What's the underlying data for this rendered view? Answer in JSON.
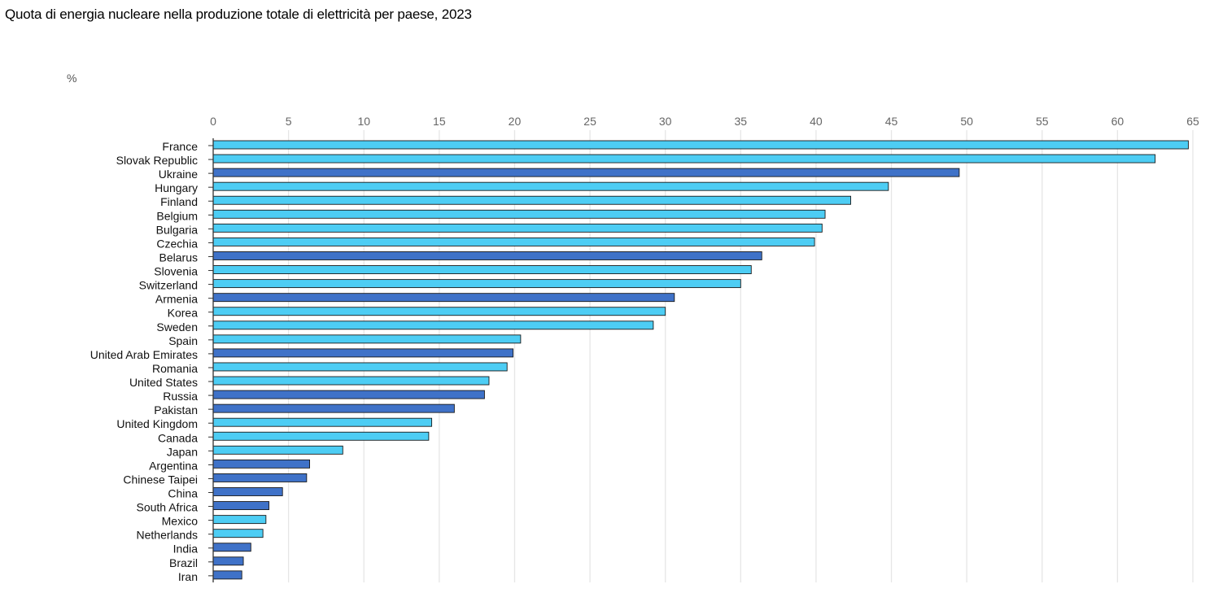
{
  "chart_data": {
    "type": "bar",
    "orientation": "horizontal",
    "title": "Quota di energia nucleare nella produzione totale di elettricità per paese, 2023",
    "unit_label": "%",
    "xlim": [
      0,
      65
    ],
    "xticks": [
      0,
      5,
      10,
      15,
      20,
      25,
      30,
      35,
      40,
      45,
      50,
      55,
      60,
      65
    ],
    "grid": true,
    "colors": {
      "light": "#4dcdf4",
      "dark": "#3f72c8",
      "border": "#1a1a1a",
      "grid": "#e6e6e6",
      "axis": "#333333"
    },
    "categories": [
      "France",
      "Slovak Republic",
      "Ukraine",
      "Hungary",
      "Finland",
      "Belgium",
      "Bulgaria",
      "Czechia",
      "Belarus",
      "Slovenia",
      "Switzerland",
      "Armenia",
      "Korea",
      "Sweden",
      "Spain",
      "United Arab Emirates",
      "Romania",
      "United States",
      "Russia",
      "Pakistan",
      "United Kingdom",
      "Canada",
      "Japan",
      "Argentina",
      "Chinese Taipei",
      "China",
      "South Africa",
      "Mexico",
      "Netherlands",
      "India",
      "Brazil",
      "Iran"
    ],
    "values": [
      64.7,
      62.5,
      49.5,
      44.8,
      42.3,
      40.6,
      40.4,
      39.9,
      36.4,
      35.7,
      35.0,
      30.6,
      30.0,
      29.2,
      20.4,
      19.9,
      19.5,
      18.3,
      18.0,
      16.0,
      14.5,
      14.3,
      8.6,
      6.4,
      6.2,
      4.6,
      3.7,
      3.5,
      3.3,
      2.5,
      2.0,
      1.9
    ],
    "series_group": [
      "light",
      "light",
      "dark",
      "light",
      "light",
      "light",
      "light",
      "light",
      "dark",
      "light",
      "light",
      "dark",
      "light",
      "light",
      "light",
      "dark",
      "light",
      "light",
      "dark",
      "dark",
      "light",
      "light",
      "light",
      "dark",
      "dark",
      "dark",
      "dark",
      "light",
      "light",
      "dark",
      "dark",
      "dark"
    ]
  }
}
